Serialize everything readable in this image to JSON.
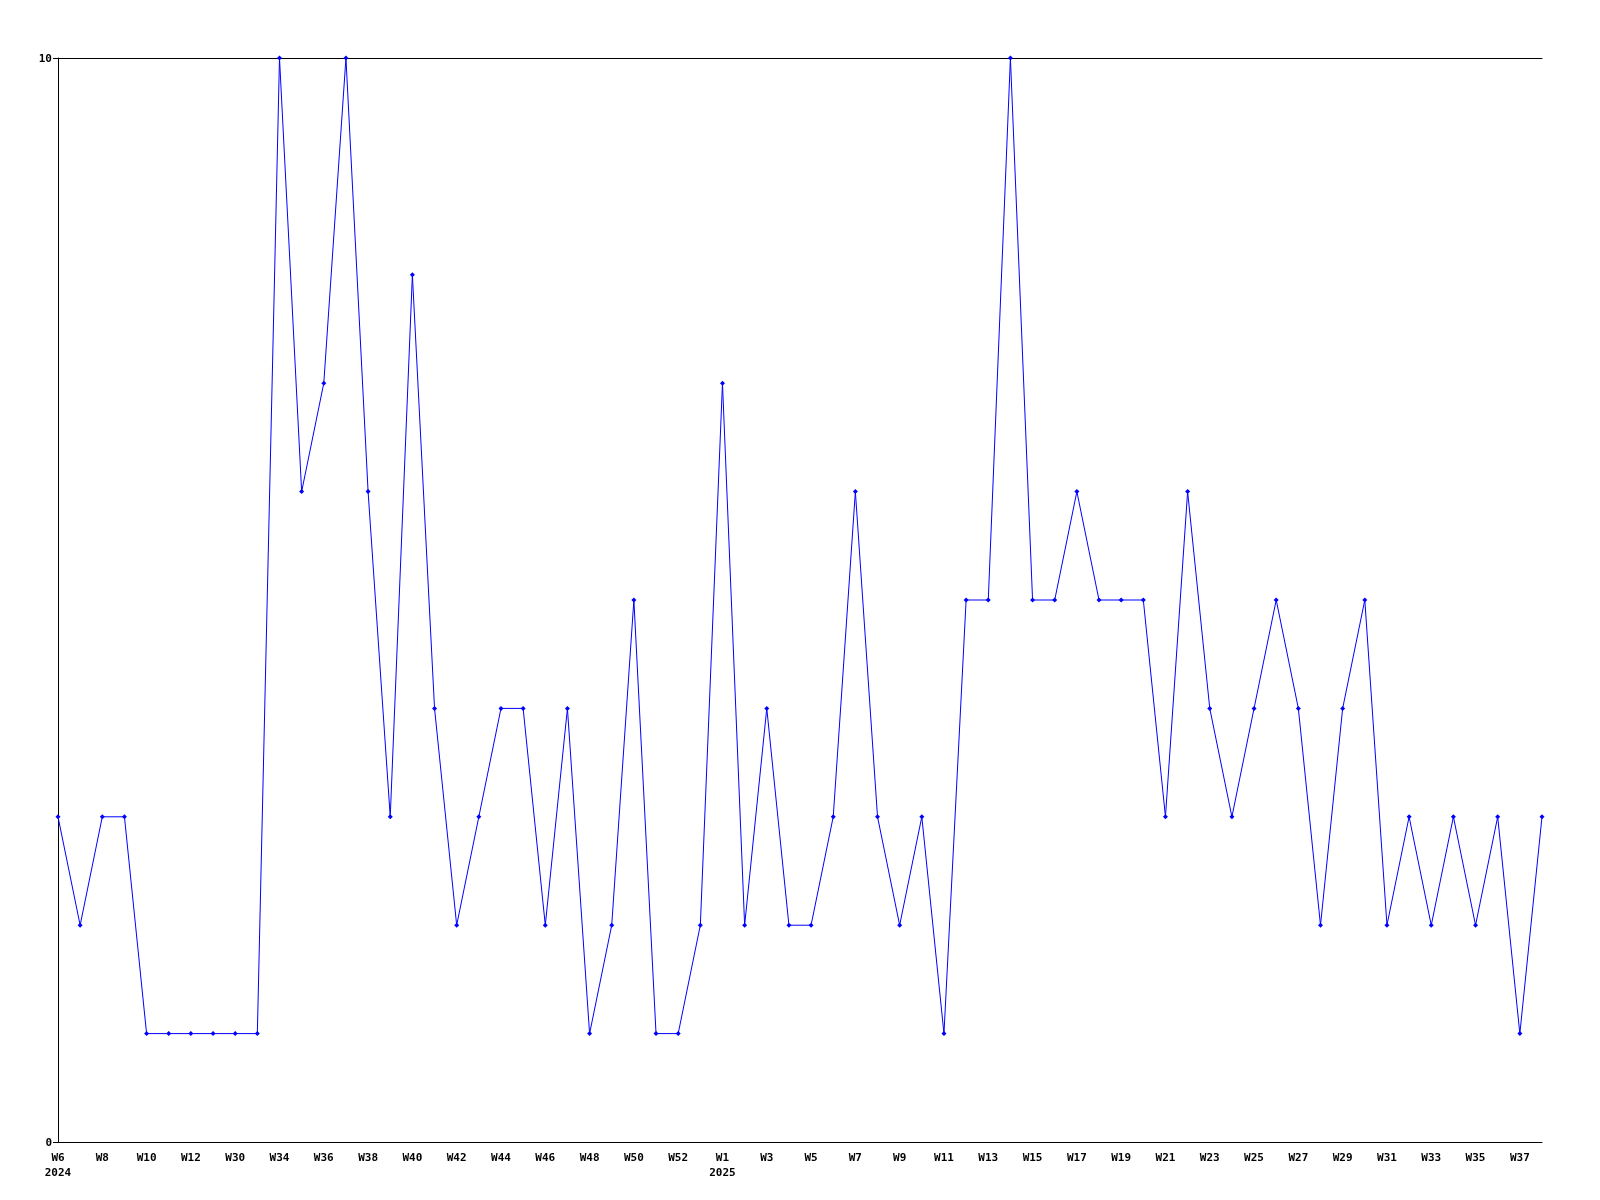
{
  "chart_data": {
    "type": "line",
    "categories": [
      "W6\n2024",
      null,
      "W8",
      null,
      "W10",
      null,
      "W12",
      null,
      "W30",
      null,
      "W34",
      null,
      "W36",
      null,
      "W38",
      null,
      "W40",
      null,
      "W42",
      null,
      "W44",
      null,
      "W46",
      null,
      "W48",
      null,
      "W50",
      null,
      "W52",
      null,
      "W1\n2025",
      null,
      "W3",
      null,
      "W5",
      null,
      "W7",
      null,
      "W9",
      null,
      "W11",
      null,
      "W13",
      null,
      "W15",
      null,
      "W17",
      null,
      "W19",
      null,
      "W21",
      null,
      "W23",
      null,
      "W25",
      null,
      "W27",
      null,
      "W29",
      null,
      "W31",
      null,
      "W33",
      null,
      "W35",
      null,
      "W37",
      null
    ],
    "series": [
      {
        "color": "#0000ff",
        "values": [
          3,
          2,
          3,
          3,
          1,
          1,
          1,
          1,
          1,
          1,
          10,
          6,
          7,
          10,
          6,
          3,
          8,
          4,
          2,
          3,
          4,
          4,
          2,
          4,
          1,
          2,
          5,
          1,
          1,
          2,
          7,
          2,
          4,
          2,
          2,
          3,
          6,
          3,
          2,
          3,
          1,
          5,
          5,
          10,
          5,
          5,
          6,
          5,
          5,
          5,
          3,
          6,
          4,
          3,
          4,
          5,
          4,
          2,
          4,
          5,
          2,
          3,
          2,
          3,
          2,
          3,
          1,
          3
        ]
      }
    ],
    "ylim": [
      0,
      10
    ],
    "yticks": [
      0,
      10
    ],
    "grid": false,
    "marker": "diamond",
    "line_style": "solid"
  }
}
